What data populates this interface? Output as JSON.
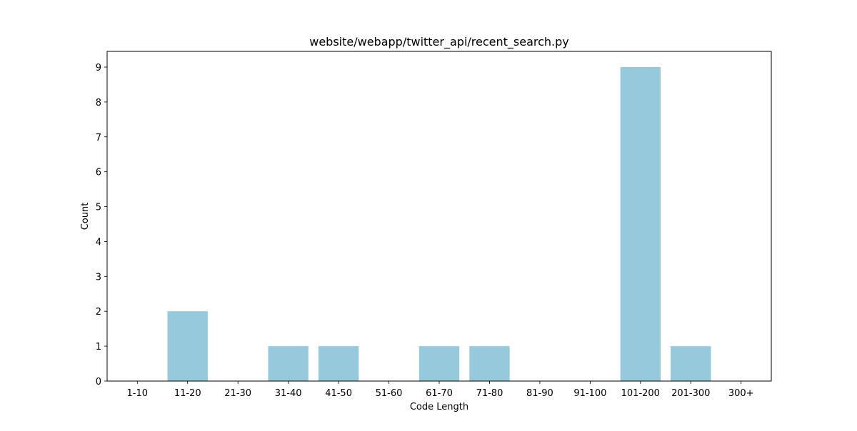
{
  "chart_data": {
    "type": "bar",
    "title": "website/webapp/twitter_api/recent_search.py",
    "xlabel": "Code Length",
    "ylabel": "Count",
    "categories": [
      "1-10",
      "11-20",
      "21-30",
      "31-40",
      "41-50",
      "51-60",
      "61-70",
      "71-80",
      "81-90",
      "91-100",
      "101-200",
      "201-300",
      "300+"
    ],
    "values": [
      0,
      2,
      0,
      1,
      1,
      0,
      1,
      1,
      0,
      0,
      9,
      1,
      0
    ],
    "ylim": [
      0,
      9.45
    ],
    "yticks": [
      0,
      1,
      2,
      3,
      4,
      5,
      6,
      7,
      8,
      9
    ],
    "bar_color": "#96c9dc",
    "grid": false,
    "legend": "none"
  }
}
